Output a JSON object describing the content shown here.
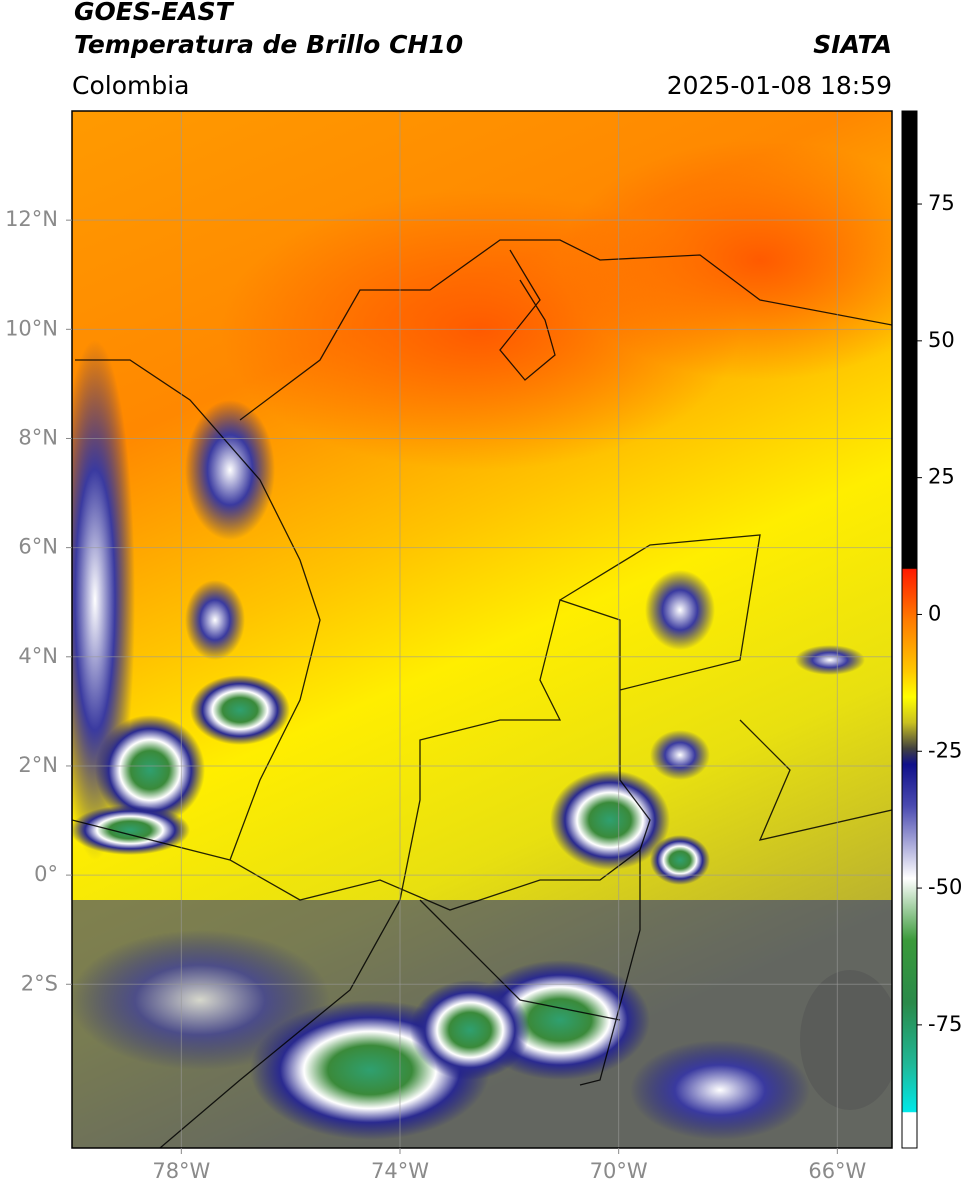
{
  "header": {
    "title": "GOES-EAST",
    "subtitle": "Temperatura de Brillo CH10",
    "region": "Colombia",
    "source": "SIATA",
    "timestamp": "2025-01-08 18:59"
  },
  "map": {
    "xlim": [
      -80,
      -65
    ],
    "ylim": [
      -5,
      14
    ],
    "xticks": [
      {
        "value": -78,
        "label": "78°W"
      },
      {
        "value": -74,
        "label": "74°W"
      },
      {
        "value": -70,
        "label": "70°W"
      },
      {
        "value": -66,
        "label": "66°W"
      }
    ],
    "yticks": [
      {
        "value": 12,
        "label": "12°N"
      },
      {
        "value": 10,
        "label": "10°N"
      },
      {
        "value": 8,
        "label": "8°N"
      },
      {
        "value": 6,
        "label": "6°N"
      },
      {
        "value": 4,
        "label": "4°N"
      },
      {
        "value": 2,
        "label": "2°N"
      },
      {
        "value": 0,
        "label": "0°"
      },
      {
        "value": -2,
        "label": "2°S"
      }
    ],
    "grid": true
  },
  "colorbar": {
    "lim": [
      -97.5,
      92
    ],
    "ticks": [
      75,
      50,
      25,
      0,
      -25,
      -50,
      -75
    ]
  }
}
